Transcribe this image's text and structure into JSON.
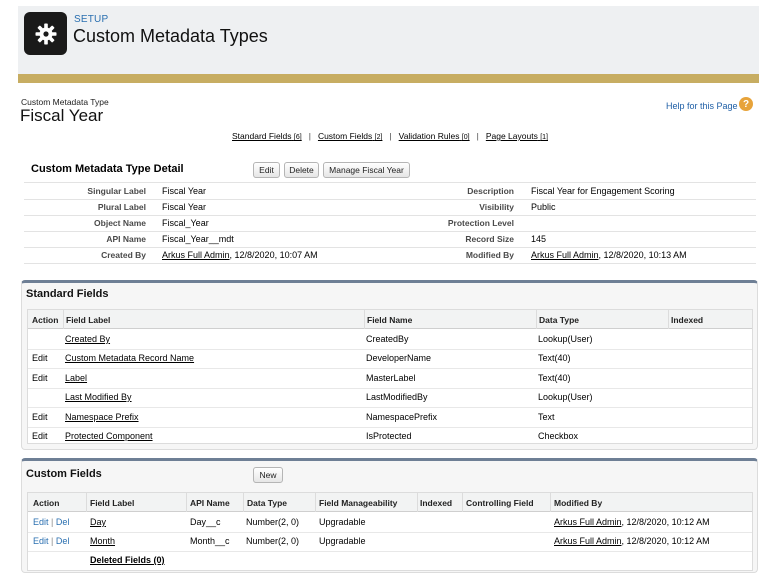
{
  "header": {
    "breadcrumb": "SETUP",
    "title": "Custom Metadata Types",
    "icon": "gear-icon"
  },
  "type": {
    "label": "Custom Metadata Type",
    "name": "Fiscal Year",
    "help": "Help for this Page"
  },
  "related": [
    {
      "label": "Standard Fields",
      "count": "[6]"
    },
    {
      "label": "Custom Fields",
      "count": "[2]"
    },
    {
      "label": "Validation Rules",
      "count": "[0]"
    },
    {
      "label": "Page Layouts",
      "count": "[1]"
    }
  ],
  "detail": {
    "title": "Custom Metadata Type Detail",
    "buttons": {
      "edit": "Edit",
      "delete": "Delete",
      "manage": "Manage Fiscal Year"
    },
    "left": [
      {
        "label": "Singular Label",
        "value": "Fiscal Year"
      },
      {
        "label": "Plural Label",
        "value": "Fiscal Year"
      },
      {
        "label": "Object Name",
        "value": "Fiscal_Year"
      },
      {
        "label": "API Name",
        "value": "Fiscal_Year__mdt"
      },
      {
        "label": "Created By",
        "user": "Arkus Full Admin",
        "date": ", 12/8/2020, 10:07 AM"
      }
    ],
    "right": [
      {
        "label": "Description",
        "value": "Fiscal Year for Engagement Scoring"
      },
      {
        "label": "Visibility",
        "value": "Public"
      },
      {
        "label": "Protection Level",
        "value": ""
      },
      {
        "label": "Record Size",
        "value": "145"
      },
      {
        "label": "Modified By",
        "user": "Arkus Full Admin",
        "date": ", 12/8/2020, 10:13 AM"
      }
    ]
  },
  "standard_fields": {
    "title": "Standard Fields",
    "columns": [
      "Action",
      "Field Label",
      "Field Name",
      "Data Type",
      "Indexed"
    ],
    "rows": [
      {
        "action": "",
        "label": "Created By",
        "name": "CreatedBy",
        "type": "Lookup(User)"
      },
      {
        "action": "Edit",
        "label": "Custom Metadata Record Name",
        "name": "DeveloperName",
        "type": "Text(40)"
      },
      {
        "action": "Edit",
        "label": "Label",
        "name": "MasterLabel",
        "type": "Text(40)"
      },
      {
        "action": "",
        "label": "Last Modified By",
        "name": "LastModifiedBy",
        "type": "Lookup(User)"
      },
      {
        "action": "Edit",
        "label": "Namespace Prefix",
        "name": "NamespacePrefix",
        "type": "Text"
      },
      {
        "action": "Edit",
        "label": "Protected Component",
        "name": "IsProtected",
        "type": "Checkbox"
      }
    ]
  },
  "custom_fields": {
    "title": "Custom Fields",
    "new_button": "New",
    "columns": [
      "Action",
      "Field Label",
      "API Name",
      "Data Type",
      "Field Manageability",
      "Indexed",
      "Controlling Field",
      "Modified By"
    ],
    "rows": [
      {
        "edit": "Edit",
        "sep": " | ",
        "del": "Del",
        "label": "Day",
        "api": "Day__c",
        "type": "Number(2, 0)",
        "manage": "Upgradable",
        "user": "Arkus Full Admin",
        "date": ", 12/8/2020, 10:12 AM"
      },
      {
        "edit": "Edit",
        "sep": " | ",
        "del": "Del",
        "label": "Month",
        "api": "Month__c",
        "type": "Number(2, 0)",
        "manage": "Upgradable",
        "user": "Arkus Full Admin",
        "date": ", 12/8/2020, 10:12 AM"
      }
    ],
    "deleted": "Deleted Fields (0)"
  }
}
